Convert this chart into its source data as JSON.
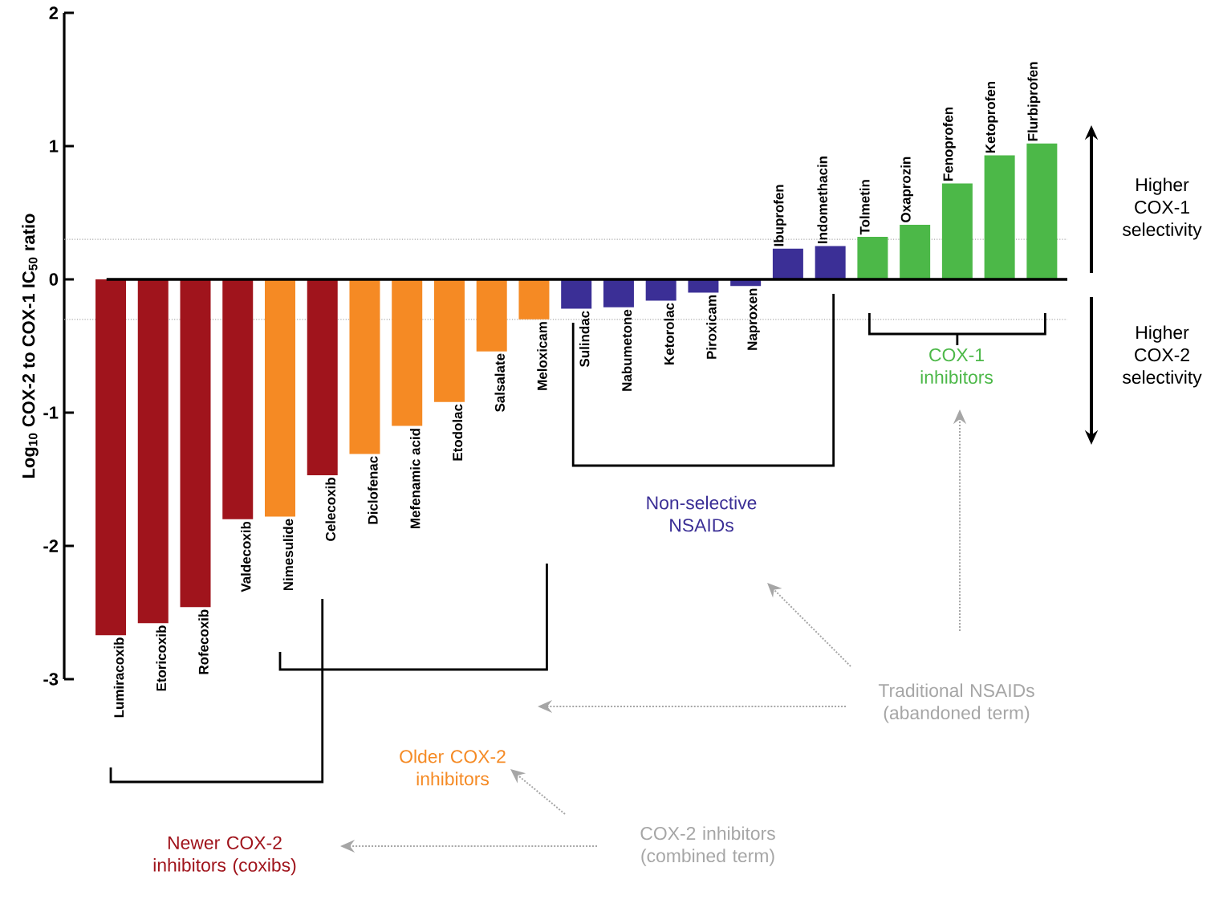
{
  "chart_data": {
    "type": "bar",
    "ylabel": "Log$_{10}$ COX-2 to COX-1 IC$_{50}$ ratio",
    "categories": [
      "Lumiracoxib",
      "Etoricoxib",
      "Rofecoxib",
      "Valdecoxib",
      "Nimesulide",
      "Celecoxib",
      "Diclofenac",
      "Mefenamic acid",
      "Etodolac",
      "Salsalate",
      "Meloxicam",
      "Sulindac",
      "Nabumetone",
      "Ketorolac",
      "Piroxicam",
      "Naproxen",
      "Ibuprofen",
      "Indomethacin",
      "Tolmetin",
      "Oxaprozin",
      "Fenoprofen",
      "Ketoprofen",
      "Flurbiprofen"
    ],
    "values": [
      -2.67,
      -2.58,
      -2.46,
      -1.8,
      -1.78,
      -1.47,
      -1.31,
      -1.1,
      -0.92,
      -0.54,
      -0.3,
      -0.22,
      -0.21,
      -0.16,
      -0.1,
      -0.05,
      0.23,
      0.25,
      0.32,
      0.41,
      0.72,
      0.93,
      1.02
    ],
    "colors": [
      "#a0141c",
      "#a0141c",
      "#a0141c",
      "#a0141c",
      "#f58a24",
      "#a0141c",
      "#f58a24",
      "#f58a24",
      "#f58a24",
      "#f58a24",
      "#f58a24",
      "#3b2f96",
      "#3b2f96",
      "#3b2f96",
      "#3b2f96",
      "#3b2f96",
      "#3b2f96",
      "#3b2f96",
      "#4cb848",
      "#4cb848",
      "#4cb848",
      "#4cb848",
      "#4cb848"
    ],
    "ylim": [
      -3,
      2
    ],
    "yticks": [
      -3,
      -2,
      -1,
      0,
      1,
      2
    ],
    "ref_lines": [
      {
        "axis": "y",
        "value": 0.3,
        "color": "#aaaaaa",
        "line_style": "dotted"
      },
      {
        "axis": "y",
        "value": -0.3,
        "color": "#aaaaaa",
        "line_style": "dotted"
      }
    ],
    "annotations": [
      "Higher COX-1 selectivity",
      "Higher COX-2 selectivity",
      "COX-1 inhibitors",
      "Non-selective NSAIDs",
      "Older COX-2 inhibitors",
      "Newer COX-2 inhibitors (coxibs)",
      "Traditional NSAIDs (abandoned term)",
      "COX-2 inhibitors (combined term)"
    ]
  }
}
